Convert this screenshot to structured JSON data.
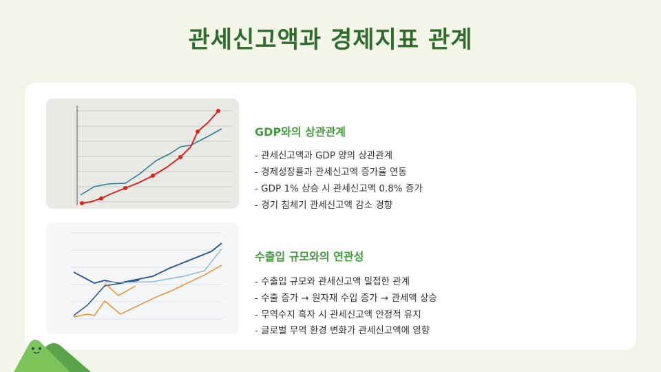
{
  "title": "관세신고액과 경제지표 관계",
  "sections": [
    {
      "heading": "GDP와의 상관관계",
      "bullets": [
        "- 관세신고액과 GDP 양의 상관관계",
        "- 경제성장률과 관세신고액 증가율 연동",
        "- GDP 1% 상승 시 관세신고액 0.8% 증가",
        "- 경기 침체기 관세신고액 감소 경향"
      ]
    },
    {
      "heading": "수출입 규모와의 연관성",
      "bullets": [
        "- 수출입 규모와 관세신고액 밀접한 관계",
        "- 수출 증가 → 원자재 수입 증가 → 관세액 상승",
        "- 무역수지 흑자 시 관세신고액 안정적 유지",
        "- 글로벌 무역 환경 변화가 관세신고액에 영향"
      ]
    }
  ]
}
